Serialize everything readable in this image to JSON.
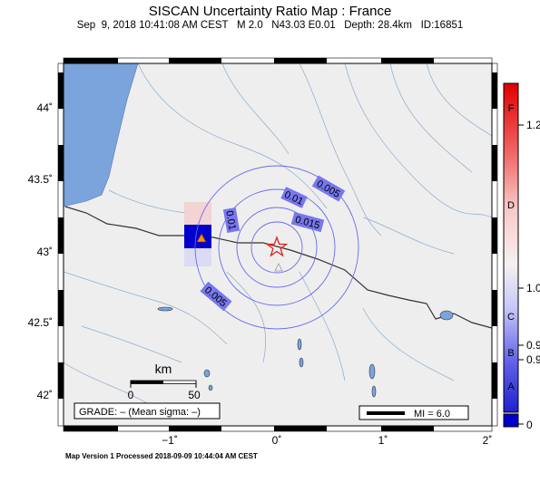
{
  "title": "SISCAN Uncertainty Ratio Map : France",
  "subtitle": "Sep  9, 2018 10:41:08 AM CEST   M 2.0   N43.03 E0.01   Depth: 28.4km   ID:16851",
  "footer": "Map Version 1 Processed 2018-09-09 10:44:04 AM CEST",
  "axes": {
    "x_ticks": [
      "−1˚",
      "0˚",
      "1˚",
      "2˚"
    ],
    "y_ticks": [
      "44˚",
      "43.5˚",
      "43˚",
      "42.5˚",
      "42˚"
    ]
  },
  "contours": [
    "0.01",
    "0.005",
    "0.01",
    "0.015",
    "0.005"
  ],
  "scale_bar": {
    "unit": "km",
    "start": "0",
    "end": "50"
  },
  "grade_box": "GRADE: – (Mean sigma: –)",
  "mi_legend": "MI = 6.0",
  "colorbar": {
    "letters": [
      "F",
      "D",
      "C",
      "B",
      "A"
    ],
    "values": [
      "1.2",
      "1.0",
      "0.9",
      "0.9",
      "0"
    ]
  },
  "colors": {
    "land": "#eeeeee",
    "water": "#7ba3dc",
    "contour": "#6a6af0",
    "epicenter": "#e02020",
    "station": "#ff8c00",
    "station_cell": "#0000cc"
  },
  "markers": {
    "epicenter": "epicenter-star-icon",
    "station": "station-triangle-icon",
    "secondary_station": "open-triangle-icon"
  }
}
